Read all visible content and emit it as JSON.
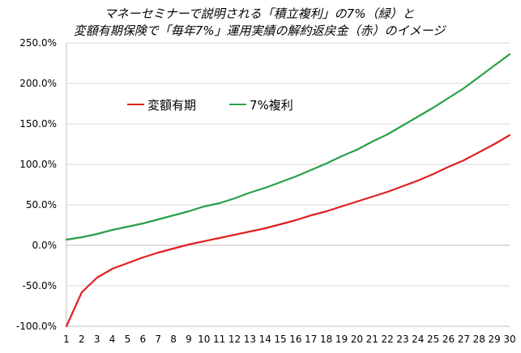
{
  "chart_data": {
    "type": "line",
    "title_lines": [
      "マネーセミナーで説明される「積立複利」の7%（緑）と",
      "変額有期保険で「毎年7%」運用実績の解約返戻金（赤）のイメージ"
    ],
    "x": [
      1,
      2,
      3,
      4,
      5,
      6,
      7,
      8,
      9,
      10,
      11,
      12,
      13,
      14,
      15,
      16,
      17,
      18,
      19,
      20,
      21,
      22,
      23,
      24,
      25,
      26,
      27,
      28,
      29,
      30
    ],
    "ylim": [
      -100,
      250
    ],
    "yticks": [
      -100,
      -50,
      0,
      50,
      100,
      150,
      200,
      250
    ],
    "ytick_labels": [
      "-100.0%",
      "-50.0%",
      "0.0%",
      "50.0%",
      "100.0%",
      "150.0%",
      "200.0%",
      "250.0%"
    ],
    "grid": "horizontal",
    "legend_position": "upper-left",
    "series": [
      {
        "name": "変額有期",
        "color": "#e02020",
        "values": [
          -100,
          -58,
          -40,
          -29,
          -22,
          -15,
          -9,
          -4,
          1,
          5,
          9,
          13,
          17,
          21,
          26,
          31,
          37,
          42,
          48,
          54,
          60,
          66,
          73,
          80,
          88,
          97,
          105,
          115,
          125,
          136
        ]
      },
      {
        "name": "7%複利",
        "color": "#28a04a",
        "values": [
          7,
          10,
          14,
          19,
          23,
          27,
          32,
          37,
          42,
          48,
          52,
          58,
          65,
          71,
          78,
          85,
          93,
          101,
          110,
          118,
          128,
          137,
          148,
          159,
          170,
          182,
          194,
          208,
          222,
          236
        ]
      }
    ]
  }
}
